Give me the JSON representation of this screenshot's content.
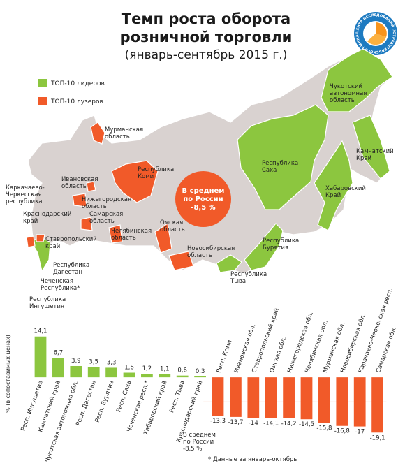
{
  "header": {
    "title_lines": [
      "Темп роста оборота",
      "розничной торговли"
    ],
    "subtitle": "(январь-сентябрь 2015 г.)",
    "logo_text": "ЦЕНТР ИССЛЕДОВАНИЙ ПОТРЕБИТЕЛЬСКОГО РЫНКА"
  },
  "map": {
    "average_lines": [
      "В среднем",
      "по России",
      "-8,5 %"
    ],
    "labels": [
      {
        "lines": [
          "Мурманская",
          "область"
        ]
      },
      {
        "lines": [
          "Республика",
          "Коми"
        ]
      },
      {
        "lines": [
          "Ивановская",
          "область"
        ]
      },
      {
        "lines": [
          "Нижегородская",
          "область"
        ]
      },
      {
        "lines": [
          "Самарская",
          "область"
        ]
      },
      {
        "lines": [
          "Челябинская",
          "область"
        ]
      },
      {
        "lines": [
          "Омская",
          "область"
        ]
      },
      {
        "lines": [
          "Новосибирская",
          "область"
        ]
      },
      {
        "lines": [
          "Республика",
          "Саха"
        ]
      },
      {
        "lines": [
          "Чукотский",
          "автономная",
          "область"
        ]
      },
      {
        "lines": [
          "Камчатский",
          "Край"
        ]
      },
      {
        "lines": [
          "Хабаровский",
          "Край"
        ]
      },
      {
        "lines": [
          "Республика",
          "Бурятия"
        ]
      },
      {
        "lines": [
          "Республика",
          "Тыва"
        ]
      },
      {
        "lines": [
          "Каркачаево-",
          "Черкесская",
          "республика"
        ]
      },
      {
        "lines": [
          "Краснодарский",
          "край"
        ]
      },
      {
        "lines": [
          "Ставропольский",
          "край"
        ]
      },
      {
        "lines": [
          "Республика",
          "Дагестан"
        ]
      },
      {
        "lines": [
          "Чеченская",
          "Республика*"
        ]
      },
      {
        "lines": [
          "Республика",
          "Ингушетия"
        ]
      }
    ]
  },
  "chart_data": {
    "type": "bar",
    "y_label": "% (в сопоставимых ценах)",
    "categories": [
      "Респ. Ингушетия",
      "Камчатский край",
      "Чукотская автономная обл.",
      "Респ. Дагестан",
      "Респ. Бурятия",
      "Респ. Саха",
      "Чеченская респ.*",
      "Хабаровский край",
      "Респ. Тыва",
      "Краснодарский край",
      "Респ. Коми",
      "Ивановская обл.",
      "Ставропольский край",
      "Омская обл.",
      "Нижегородская обл.",
      "Челябинская обл.",
      "Мурманская обл.",
      "Новосибирская обл.",
      "Карачаево-Черкесская респ.",
      "Самарская обл."
    ],
    "series": [
      {
        "name": "ТОП-10 лидеров",
        "color": "#8cc63f",
        "values": [
          14.1,
          6.7,
          3.9,
          3.5,
          3.3,
          1.6,
          1.2,
          1.1,
          0.6,
          0.3,
          null,
          null,
          null,
          null,
          null,
          null,
          null,
          null,
          null,
          null
        ],
        "value_labels": [
          "14,1",
          "6,7",
          "3,9",
          "3,5",
          "3,3",
          "1,6",
          "1,2",
          "1,1",
          "0,6",
          "0,3",
          null,
          null,
          null,
          null,
          null,
          null,
          null,
          null,
          null,
          null
        ]
      },
      {
        "name": "ТОП-10 лузеров",
        "color": "#f15a29",
        "values": [
          null,
          null,
          null,
          null,
          null,
          null,
          null,
          null,
          null,
          null,
          -13.3,
          -13.7,
          -14,
          -14.1,
          -14.2,
          -14.5,
          -15.8,
          -16.8,
          -17,
          -19.1
        ],
        "value_labels": [
          null,
          null,
          null,
          null,
          null,
          null,
          null,
          null,
          null,
          null,
          "-13,3",
          "-13,7",
          "-14",
          "-14,1",
          "-14,2",
          "-14,5",
          "-15,8",
          "-16,8",
          "-17",
          "-19,1"
        ]
      }
    ],
    "ylim": [
      -20,
      15
    ],
    "average_value": -8.5,
    "average_label": [
      "В среднем",
      "по России",
      "-8,5 %"
    ],
    "footnote": "* Данные за январь-октябрь"
  }
}
